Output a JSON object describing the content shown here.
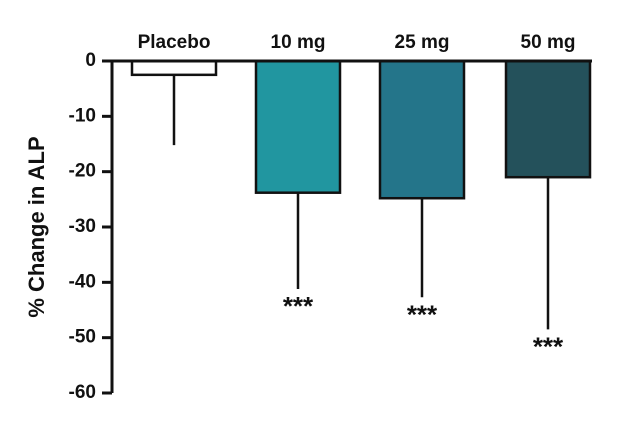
{
  "chart_data": {
    "type": "bar",
    "categories": [
      "Placebo",
      "10 mg",
      "25 mg",
      "50 mg"
    ],
    "values": [
      -2.5,
      -23.8,
      -24.8,
      -21.0
    ],
    "error_lower": [
      -15.2,
      -41.2,
      -42.7,
      -48.5
    ],
    "annotations": [
      "",
      "***",
      "***",
      "***"
    ],
    "bar_colors": [
      "#ffffff",
      "#2196a0",
      "#24758a",
      "#24515b"
    ],
    "title": "",
    "xlabel": "",
    "ylabel": "% Change in ALP",
    "ylim": [
      -60,
      0
    ],
    "yticks": [
      0,
      -10,
      -20,
      -30,
      -40,
      -50,
      -60
    ],
    "ytick_labels": [
      "0",
      "-10",
      "-20",
      "-30",
      "-40",
      "-50",
      "-60"
    ],
    "category_labels_position": "top",
    "grid": false,
    "legend": "none"
  }
}
